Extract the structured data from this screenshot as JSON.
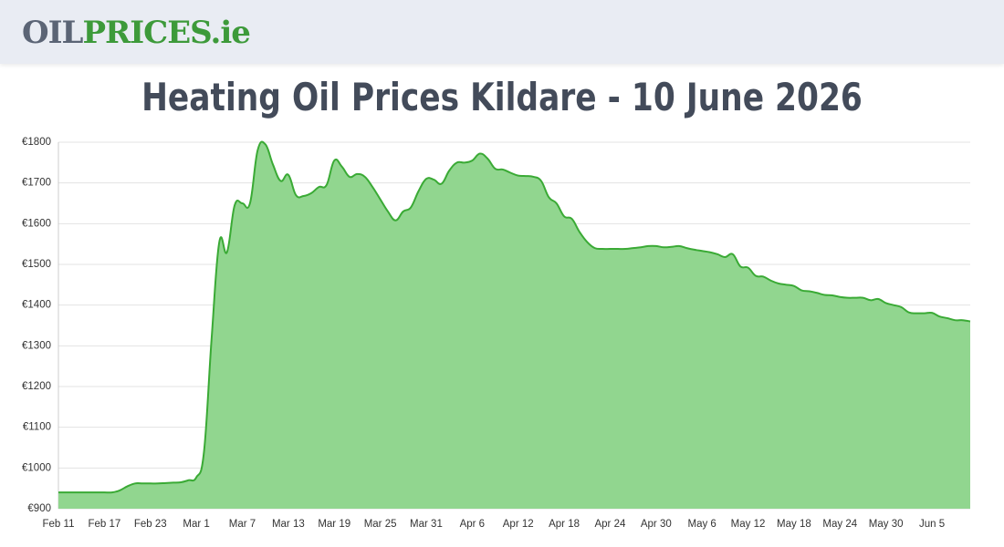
{
  "header": {
    "logo": [
      "OIL",
      "PRICES.ie"
    ]
  },
  "chart_data": {
    "type": "area",
    "title": "Heating Oil Prices Kildare - 10 June 2026",
    "categories": [
      "Feb 11",
      null,
      null,
      null,
      null,
      null,
      "Feb 17",
      null,
      null,
      null,
      null,
      null,
      "Feb 23",
      null,
      null,
      null,
      null,
      null,
      "Mar 1",
      null,
      null,
      null,
      null,
      null,
      "Mar 7",
      null,
      null,
      null,
      null,
      null,
      "Mar 13",
      null,
      null,
      null,
      null,
      null,
      "Mar 19",
      null,
      null,
      null,
      null,
      null,
      "Mar 25",
      null,
      null,
      null,
      null,
      null,
      "Mar 31",
      null,
      null,
      null,
      null,
      null,
      "Apr 6",
      null,
      null,
      null,
      null,
      null,
      "Apr 12",
      null,
      null,
      null,
      null,
      null,
      "Apr 18",
      null,
      null,
      null,
      null,
      null,
      "Apr 24",
      null,
      null,
      null,
      null,
      null,
      "Apr 30",
      null,
      null,
      null,
      null,
      null,
      "May 6",
      null,
      null,
      null,
      null,
      null,
      "May 12",
      null,
      null,
      null,
      null,
      null,
      "May 18",
      null,
      null,
      null,
      null,
      null,
      "May 24",
      null,
      null,
      null,
      null,
      null,
      "May 30",
      null,
      null,
      null,
      null,
      null,
      "Jun 5",
      null,
      null,
      null,
      null,
      null
    ],
    "values": [
      940,
      940,
      940,
      940,
      940,
      940,
      940,
      940,
      945,
      955,
      962,
      962,
      962,
      962,
      963,
      964,
      965,
      970,
      977,
      1040,
      1320,
      1555,
      1530,
      1645,
      1650,
      1650,
      1780,
      1795,
      1745,
      1705,
      1720,
      1670,
      1668,
      1675,
      1690,
      1695,
      1755,
      1740,
      1715,
      1722,
      1715,
      1690,
      1660,
      1630,
      1608,
      1630,
      1640,
      1680,
      1710,
      1708,
      1698,
      1730,
      1750,
      1750,
      1755,
      1772,
      1760,
      1735,
      1733,
      1725,
      1718,
      1717,
      1715,
      1705,
      1665,
      1650,
      1618,
      1612,
      1580,
      1555,
      1540,
      1538,
      1538,
      1538,
      1538,
      1540,
      1542,
      1545,
      1545,
      1542,
      1543,
      1545,
      1540,
      1536,
      1533,
      1530,
      1525,
      1518,
      1525,
      1495,
      1492,
      1472,
      1470,
      1460,
      1453,
      1450,
      1447,
      1436,
      1434,
      1430,
      1425,
      1424,
      1420,
      1418,
      1418,
      1418,
      1412,
      1415,
      1405,
      1400,
      1395,
      1382,
      1380,
      1380,
      1381,
      1372,
      1368,
      1363,
      1363,
      1360
    ],
    "color": "#3aaa35",
    "fill": "#91d68f",
    "ylim": [
      900,
      1800
    ],
    "yticks": [
      {
        "value": 900,
        "label": "€900"
      },
      {
        "value": 1000,
        "label": "€1000"
      },
      {
        "value": 1100,
        "label": "€1100"
      },
      {
        "value": 1200,
        "label": "€1200"
      },
      {
        "value": 1300,
        "label": "€1300"
      },
      {
        "value": 1400,
        "label": "€1400"
      },
      {
        "value": 1500,
        "label": "€1500"
      },
      {
        "value": 1600,
        "label": "€1600"
      },
      {
        "value": 1700,
        "label": "€1700"
      },
      {
        "value": 1800,
        "label": "€1800"
      }
    ],
    "grid": true
  }
}
